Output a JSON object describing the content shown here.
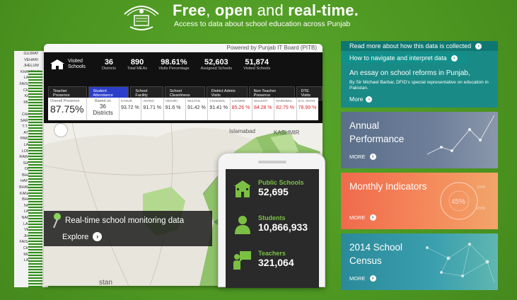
{
  "header": {
    "title_free": "Free",
    "title_sep1": ", ",
    "title_open": "open",
    "title_and": " and ",
    "title_real": "real-time.",
    "subtitle": "Access to data about school education across Punjab"
  },
  "district_list": [
    "GUJRAT",
    "VEHARI",
    "JHELUM",
    "KHANEWAL",
    "LAYYAH",
    "FAISALABAD",
    "CHINIOT",
    "KASUR",
    "MULTAN",
    "",
    "CHAKWAL",
    "SARGODHA",
    "T.T.SINGH",
    "ATTOCK",
    "PAKPATTAN",
    "LAYYAH",
    "LODHRAN",
    "RAWALPINDI",
    "SIALKOT",
    "OKARA",
    "BHAKKAR",
    "HAFIZABAD",
    "BHAWALPUR",
    "KANA SAHIB",
    "BHAKKAR",
    "NARIAN",
    "LAYYAH",
    "NAROWAL",
    "LAHORE",
    "VEHARI",
    "JHELUM",
    "FAISALABAD",
    "CHINIOT",
    "MULTAN",
    "LAYYAH"
  ],
  "dashboard": {
    "powered_by": "Powered by Punjab IT Board (PITB)",
    "visited_label": "Visited Schools",
    "stats": [
      {
        "value": "36",
        "label": "Districts"
      },
      {
        "value": "890",
        "label": "Total MEAs"
      },
      {
        "value": "98.61%",
        "label": "Visits Percentage"
      },
      {
        "value": "52,603",
        "label": "Assigned Schools"
      },
      {
        "value": "51,874",
        "label": "Visited Schools"
      }
    ],
    "tabs": [
      "Teacher Presence",
      "Student Attendance",
      "School Facility",
      "School Cleanliness",
      "District Admin Visits",
      "Non Teacher Presence",
      "DTE Visits"
    ],
    "overall_label": "Overall Presence",
    "overall_value": "87.75%",
    "based_label": "Based on",
    "based_value": "36",
    "based_unit": "Districts",
    "districts": [
      {
        "name": "KASUR",
        "value": "93.72 %",
        "red": false
      },
      {
        "name": "JHANG",
        "value": "91.71 %",
        "red": false
      },
      {
        "name": "VEHARI",
        "value": "91.6 %",
        "red": false
      },
      {
        "name": "MULTAN",
        "value": "91.42 %",
        "red": false
      },
      {
        "name": "CHAKWAL",
        "value": "91.41 %",
        "red": false
      },
      {
        "name": "LAHORE",
        "value": "85.26 %",
        "red": true
      },
      {
        "name": "SIALKOT",
        "value": "84.28 %",
        "red": true
      },
      {
        "name": "NAROWAL",
        "value": "82.75 %",
        "red": true
      },
      {
        "name": "D.G. KHAN",
        "value": "78.99 %",
        "red": true
      }
    ],
    "map_labels": {
      "islamabad": "Islamabad",
      "kashmir": "KASHMIR",
      "stan": "stan"
    },
    "overlay_title": "Real-time school monitoring data",
    "explore": "Explore"
  },
  "phone": {
    "items": [
      {
        "label": "Public Schools",
        "value": "52,695"
      },
      {
        "label": "Students",
        "value": "10,866,933"
      },
      {
        "label": "Teachers",
        "value": "321,064"
      }
    ]
  },
  "right": {
    "link1": "Read more about how this data is collected",
    "link2": "How to navigate and interpret data",
    "essay_title": "An essay on school reforms in Punjab,",
    "essay_sub": "By Sir Michael Barbar, DFID's special representative on education in Pakistan.",
    "essay_more": "More",
    "cards": [
      {
        "title": "Annual Performance",
        "more": "MORE"
      },
      {
        "title": "Monthly Indicators",
        "more": "MORE",
        "pct1": "45%",
        "pct2": "25%",
        "pct3": "25%"
      },
      {
        "title": "2014 School Census",
        "more": "MORE"
      }
    ]
  },
  "colors": {
    "brand_green": "#4f9b24",
    "teal": "#0e7772",
    "red": "#d8262b",
    "active_tab": "#2b3ec9"
  }
}
